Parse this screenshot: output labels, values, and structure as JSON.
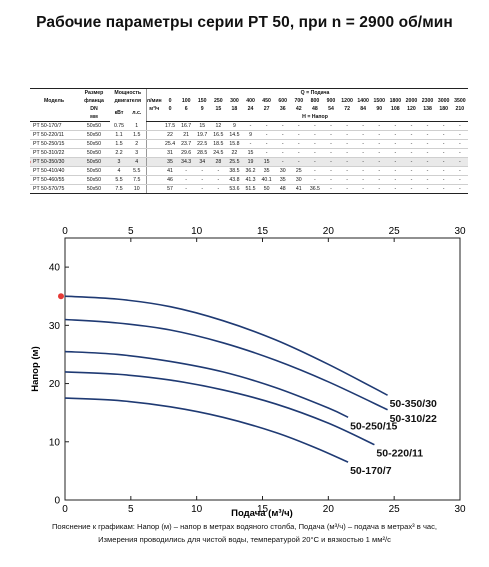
{
  "title": "Рабочие параметры серии PT 50, при n = 2900 об/мин",
  "table": {
    "h_model": "Модель",
    "h_flange": [
      "Размер",
      "фланца"
    ],
    "h_dn": "DN",
    "h_mm": "мм",
    "h_power": [
      "Мощность",
      "двигателя"
    ],
    "h_kw": "кВт",
    "h_hp": "л.с.",
    "h_q": "Q = Подача",
    "h_lmin": "л/мин",
    "h_m3h": "м³/ч",
    "h_head": "H = Напор",
    "q_lmin": [
      "0",
      "100",
      "150",
      "250",
      "300",
      "400",
      "450",
      "600",
      "700",
      "800",
      "900",
      "1200",
      "1400",
      "1500",
      "1800",
      "2000",
      "2300",
      "3000",
      "3500"
    ],
    "q_m3h": [
      "0",
      "6",
      "9",
      "15",
      "18",
      "24",
      "27",
      "36",
      "42",
      "48",
      "54",
      "72",
      "84",
      "90",
      "108",
      "120",
      "138",
      "180",
      "210"
    ],
    "rows": [
      {
        "model": "PT 50-170/7",
        "dn": "50x50",
        "kw": "0.75",
        "hp": "1",
        "h": [
          "17.5",
          "16.7",
          "15",
          "12",
          "9",
          "-",
          "-",
          "-",
          "-",
          "-",
          "-",
          "-",
          "-",
          "-",
          "-",
          "-",
          "-",
          "-",
          "-"
        ]
      },
      {
        "model": "PT 50-220/11",
        "dn": "50x50",
        "kw": "1.1",
        "hp": "1.5",
        "h": [
          "22",
          "21",
          "19.7",
          "16.5",
          "14.5",
          "9",
          "-",
          "-",
          "-",
          "-",
          "-",
          "-",
          "-",
          "-",
          "-",
          "-",
          "-",
          "-",
          "-"
        ]
      },
      {
        "model": "PT 50-250/15",
        "dn": "50x50",
        "kw": "1.5",
        "hp": "2",
        "h": [
          "25.4",
          "23.7",
          "22.5",
          "18.5",
          "15.8",
          "-",
          "-",
          "-",
          "-",
          "-",
          "-",
          "-",
          "-",
          "-",
          "-",
          "-",
          "-",
          "-",
          "-"
        ]
      },
      {
        "model": "PT 50-310/22",
        "dn": "50x50",
        "kw": "2.2",
        "hp": "3",
        "h": [
          "31",
          "29.6",
          "28.5",
          "24.5",
          "22",
          "15",
          "-",
          "-",
          "-",
          "-",
          "-",
          "-",
          "-",
          "-",
          "-",
          "-",
          "-",
          "-",
          "-"
        ]
      },
      {
        "model": "PT 50-350/30",
        "dn": "50x50",
        "kw": "3",
        "hp": "4",
        "h": [
          "35",
          "34.3",
          "34",
          "28",
          "25.5",
          "19",
          "15",
          "-",
          "-",
          "-",
          "-",
          "-",
          "-",
          "-",
          "-",
          "-",
          "-",
          "-",
          "-"
        ],
        "marked": true
      },
      {
        "model": "PT 50-410/40",
        "dn": "50x50",
        "kw": "4",
        "hp": "5.5",
        "h": [
          "41",
          "-",
          "-",
          "-",
          "38.5",
          "36.2",
          "35",
          "30",
          "25",
          "-",
          "-",
          "-",
          "-",
          "-",
          "-",
          "-",
          "-",
          "-",
          "-"
        ]
      },
      {
        "model": "PT 50-460/55",
        "dn": "50x50",
        "kw": "5.5",
        "hp": "7.5",
        "h": [
          "46",
          "-",
          "-",
          "-",
          "43.8",
          "41.3",
          "40.1",
          "35",
          "30",
          "-",
          "-",
          "-",
          "-",
          "-",
          "-",
          "-",
          "-",
          "-",
          "-"
        ]
      },
      {
        "model": "PT 50-570/75",
        "dn": "50x50",
        "kw": "7.5",
        "hp": "10",
        "h": [
          "57",
          "-",
          "-",
          "-",
          "53.6",
          "51.5",
          "50",
          "48",
          "41",
          "36.5",
          "-",
          "-",
          "-",
          "-",
          "-",
          "-",
          "-",
          "-",
          "-"
        ]
      }
    ]
  },
  "chart_data": {
    "type": "line",
    "xlabel": "Подача (м³/ч)",
    "ylabel": "Напор (м)",
    "xlim": [
      0,
      30
    ],
    "ylim": [
      0,
      45
    ],
    "x_ticks": [
      0,
      5,
      10,
      15,
      20,
      25,
      30
    ],
    "y_ticks": [
      0,
      10,
      20,
      30,
      40
    ],
    "top_x_ticks": [
      0,
      5,
      10,
      15,
      20,
      25,
      30
    ],
    "grid": false,
    "line_color": "#1f3a73",
    "marker_color": "#e53935",
    "marker_y": 35,
    "series": [
      {
        "name": "50-350/30",
        "x": [
          0,
          4,
          8,
          12,
          16,
          20,
          24.5
        ],
        "y": [
          35,
          34.5,
          33.2,
          30.8,
          27.5,
          23.3,
          18
        ]
      },
      {
        "name": "50-310/22",
        "x": [
          0,
          4,
          8,
          12,
          16,
          20,
          24.5
        ],
        "y": [
          31,
          30.4,
          29.2,
          27,
          24,
          20.3,
          15.5
        ]
      },
      {
        "name": "50-250/15",
        "x": [
          0,
          4,
          8,
          12,
          16,
          20,
          21.5
        ],
        "y": [
          25.5,
          25,
          23.8,
          22,
          19.3,
          15.8,
          14.2
        ]
      },
      {
        "name": "50-220/11",
        "x": [
          0,
          4,
          8,
          12,
          16,
          20,
          23.5
        ],
        "y": [
          22,
          21.6,
          20.6,
          18.9,
          16.5,
          13.2,
          9.5
        ]
      },
      {
        "name": "50-170/7",
        "x": [
          0,
          4,
          8,
          12,
          16,
          19,
          21.5
        ],
        "y": [
          17.5,
          17.1,
          16,
          14.2,
          11.6,
          9,
          6.5
        ]
      }
    ]
  },
  "footnote": [
    "Пояснение к графикам: Напор (м) – напор в метрах водяного столба, Подача (м³/ч) – подача в метрах³ в час,",
    "Измерения проводились для чистой воды, температурой 20°С и вязкостью 1 мм²/с"
  ]
}
